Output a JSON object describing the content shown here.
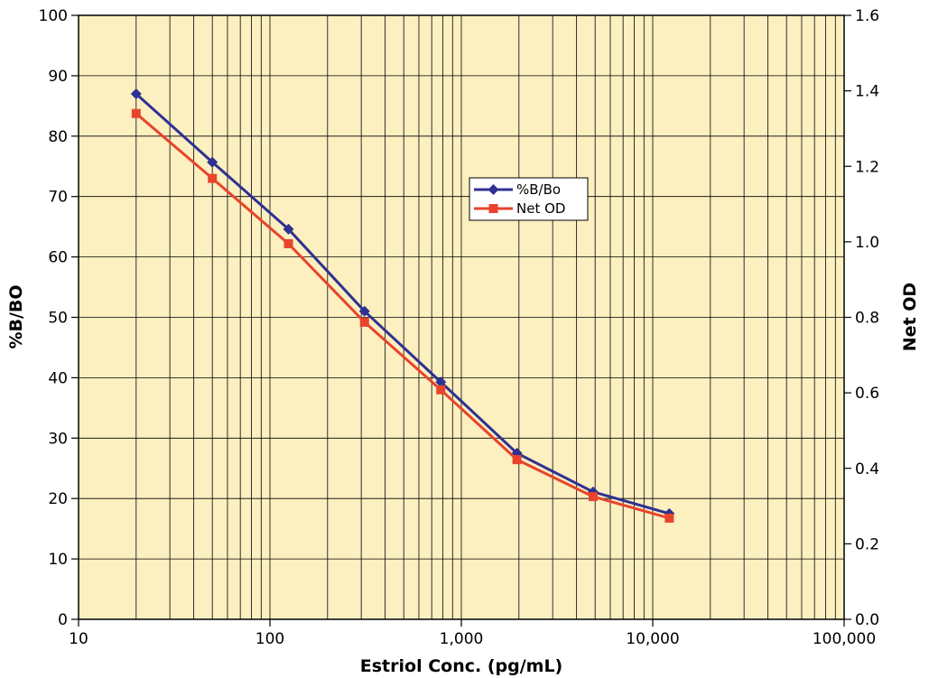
{
  "chart_data": {
    "type": "line",
    "x_scale": "log",
    "xlabel": "Estriol Conc. (pg/mL)",
    "ylabel_left": "%B/BO",
    "ylabel_right": "Net OD",
    "xlim": [
      10,
      100000
    ],
    "ylim_left": [
      0,
      100
    ],
    "ylim_right": [
      0,
      1.6
    ],
    "grid": true,
    "legend_position": "center-right",
    "x_tick_labels": [
      "10",
      "100",
      "1,000",
      "10,000",
      "100,000"
    ],
    "x_tick_values": [
      10,
      100,
      1000,
      10000,
      100000
    ],
    "y_left_ticks": [
      "0",
      "10",
      "20",
      "30",
      "40",
      "50",
      "60",
      "70",
      "80",
      "90",
      "100"
    ],
    "y_right_ticks": [
      "0.0",
      "0.2",
      "0.4",
      "0.6",
      "0.8",
      "1.0",
      "1.2",
      "1.4",
      "1.6"
    ],
    "x": [
      20,
      50,
      125,
      312,
      781,
      1953,
      4883,
      12207
    ],
    "series": [
      {
        "name": "%B/Bo",
        "axis": "left",
        "color": "#2e3192",
        "marker": "diamond",
        "values": [
          87,
          75.7,
          64.6,
          51,
          39.3,
          27.5,
          21.1,
          17.5
        ]
      },
      {
        "name": "Net OD",
        "axis": "right",
        "color": "#e8442c",
        "marker": "square",
        "values": [
          1.34,
          1.168,
          0.995,
          0.787,
          0.608,
          0.423,
          0.325,
          0.268
        ]
      }
    ]
  },
  "colors": {
    "plot_background": "#fcefc0",
    "grid": "#000000"
  }
}
